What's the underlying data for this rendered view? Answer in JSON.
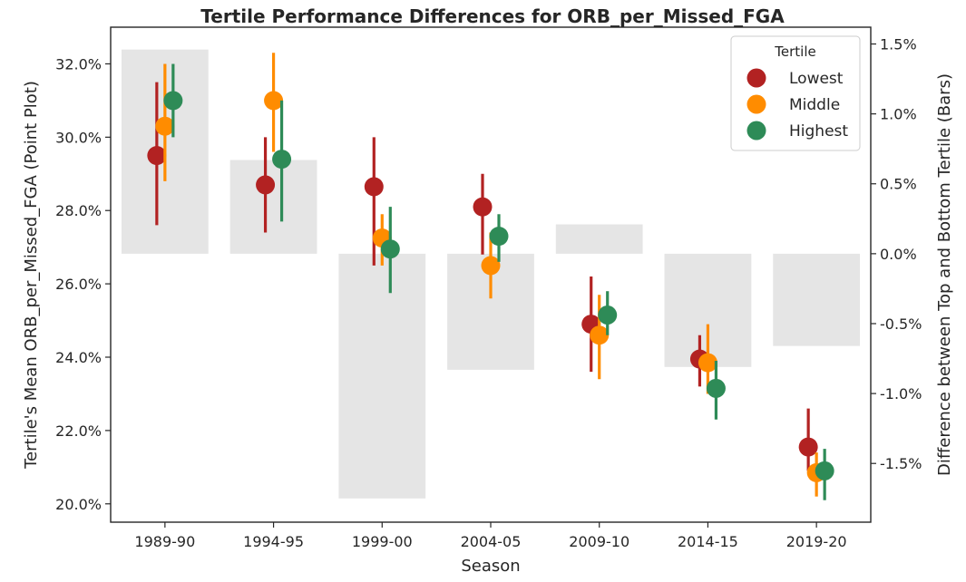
{
  "chart_data": {
    "type": "point_with_bars",
    "title": "Tertile Performance Differences for ORB_per_Missed_FGA",
    "xlabel": "Season",
    "ylabel_left": "Tertile's Mean ORB_per_Missed_FGA (Point Plot)",
    "ylabel_right": "Difference between Top and Bottom Tertile (Bars)",
    "categories": [
      "1989-90",
      "1994-95",
      "1999-00",
      "2004-05",
      "2009-10",
      "2014-15",
      "2019-20"
    ],
    "left_axis": {
      "ylim": [
        19.5,
        33.0
      ],
      "ticks": [
        20.0,
        22.0,
        24.0,
        26.0,
        28.0,
        30.0,
        32.0
      ],
      "tick_labels": [
        "20.0%",
        "22.0%",
        "24.0%",
        "26.0%",
        "28.0%",
        "30.0%",
        "32.0%"
      ]
    },
    "right_axis": {
      "ylim": [
        -1.92,
        1.62
      ],
      "ticks": [
        -1.5,
        -1.0,
        -0.5,
        0.0,
        0.5,
        1.0,
        1.5
      ],
      "tick_labels": [
        "-1.5%",
        "-1.0%",
        "-0.5%",
        "0.0%",
        "0.5%",
        "1.0%",
        "1.5%"
      ]
    },
    "bars": {
      "color": "#e5e5e5",
      "values": [
        1.46,
        0.67,
        -1.75,
        -0.83,
        0.21,
        -0.81,
        -0.66
      ]
    },
    "legend": {
      "title": "Tertile",
      "placement": "top-right"
    },
    "series": [
      {
        "name": "Lowest",
        "color": "#b22222",
        "values": [
          29.5,
          28.7,
          28.65,
          28.1,
          24.9,
          23.95,
          21.55
        ],
        "ci_low": [
          27.6,
          27.4,
          26.5,
          26.8,
          23.6,
          23.2,
          20.9
        ],
        "ci_high": [
          31.5,
          30.0,
          30.0,
          29.0,
          26.2,
          24.6,
          22.6
        ]
      },
      {
        "name": "Middle",
        "color": "#ff8c00",
        "values": [
          30.3,
          31.0,
          27.25,
          26.5,
          24.6,
          23.85,
          20.85
        ],
        "ci_low": [
          28.8,
          29.6,
          26.5,
          25.6,
          23.4,
          23.0,
          20.2
        ],
        "ci_high": [
          32.0,
          32.3,
          27.9,
          27.4,
          25.7,
          24.9,
          21.4
        ]
      },
      {
        "name": "Highest",
        "color": "#2e8b57",
        "values": [
          31.0,
          29.4,
          26.95,
          27.3,
          25.15,
          23.15,
          20.9
        ],
        "ci_low": [
          30.0,
          27.7,
          25.75,
          26.6,
          24.6,
          22.3,
          20.1
        ],
        "ci_high": [
          32.0,
          31.0,
          28.1,
          27.9,
          25.8,
          23.9,
          21.5
        ]
      }
    ]
  }
}
